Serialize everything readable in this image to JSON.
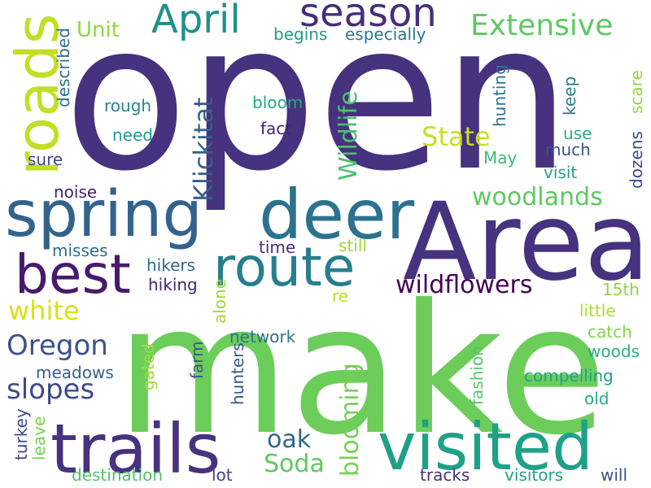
{
  "words": {
    "open": {
      "text": "open",
      "color": "#46327e"
    },
    "make": {
      "text": "make",
      "color": "#6ccd5a"
    },
    "area": {
      "text": "Area",
      "color": "#46327e"
    },
    "spring": {
      "text": "spring",
      "color": "#33638d"
    },
    "deer": {
      "text": "deer",
      "color": "#2c728e"
    },
    "trails": {
      "text": "trails",
      "color": "#46327e"
    },
    "visited": {
      "text": "visited",
      "color": "#1fa187"
    },
    "route": {
      "text": "route",
      "color": "#277f8e"
    },
    "best": {
      "text": "best",
      "color": "#481a6c"
    },
    "roads": {
      "text": "roads",
      "color": "#c2df23"
    },
    "season": {
      "text": "season",
      "color": "#472d7b"
    },
    "april": {
      "text": "April",
      "color": "#21918c"
    },
    "extensive": {
      "text": "Extensive",
      "color": "#5ec962"
    },
    "wildflowers": {
      "text": "wildflowers",
      "color": "#440154"
    },
    "woodlands": {
      "text": "woodlands",
      "color": "#5ec962"
    },
    "klickitat": {
      "text": "Klickitat",
      "color": "#355f8d"
    },
    "state": {
      "text": "State",
      "color": "#c8e020"
    },
    "wildlife": {
      "text": "Wildlife",
      "color": "#4ac16d"
    },
    "oregon": {
      "text": "Oregon",
      "color": "#3b528b"
    },
    "slopes": {
      "text": "slopes",
      "color": "#3e4a89"
    },
    "white": {
      "text": "white",
      "color": "#d8e219"
    },
    "blooming": {
      "text": "blooming",
      "color": "#75d054"
    },
    "soda": {
      "text": "Soda",
      "color": "#5ec962"
    },
    "oak": {
      "text": "oak",
      "color": "#31688e"
    },
    "unit": {
      "text": "Unit",
      "color": "#90d743"
    },
    "begins": {
      "text": "begins",
      "color": "#1f9e89"
    },
    "especially": {
      "text": "especially",
      "color": "#2a788e"
    },
    "described": {
      "text": "described",
      "color": "#2e6e8e"
    },
    "rough": {
      "text": "rough",
      "color": "#25848e"
    },
    "bloom": {
      "text": "bloom",
      "color": "#22a884"
    },
    "need": {
      "text": "need",
      "color": "#1e9b8a"
    },
    "fact": {
      "text": "fact",
      "color": "#482576"
    },
    "sure": {
      "text": "sure",
      "color": "#3e4989"
    },
    "noise": {
      "text": "noise",
      "color": "#481f70"
    },
    "misses": {
      "text": "misses",
      "color": "#2d708e"
    },
    "time": {
      "text": "time",
      "color": "#472f7d"
    },
    "still": {
      "text": "still",
      "color": "#9bd93c"
    },
    "hikers": {
      "text": "hikers",
      "color": "#31688e"
    },
    "hiking": {
      "text": "hiking",
      "color": "#482677"
    },
    "alone": {
      "text": "alone",
      "color": "#a0da39"
    },
    "re": {
      "text": "re",
      "color": "#bddf26"
    },
    "network": {
      "text": "network",
      "color": "#2c728e"
    },
    "farm": {
      "text": "farm",
      "color": "#38588c"
    },
    "hunters": {
      "text": "hunters",
      "color": "#3a548c"
    },
    "gated": {
      "text": "gated",
      "color": "#a5db36"
    },
    "meadows": {
      "text": "meadows",
      "color": "#355f8d"
    },
    "turkey": {
      "text": "turkey",
      "color": "#3f4788"
    },
    "leave": {
      "text": "leave",
      "color": "#7ad151"
    },
    "destination": {
      "text": "destination",
      "color": "#4ec36b"
    },
    "lot": {
      "text": "lot",
      "color": "#414487"
    },
    "tracks": {
      "text": "tracks",
      "color": "#46307e"
    },
    "visitors": {
      "text": "visitors",
      "color": "#20a386"
    },
    "will": {
      "text": "will",
      "color": "#3b528b"
    },
    "fashion": {
      "text": "fashion",
      "color": "#56c667"
    },
    "compelling": {
      "text": "compelling",
      "color": "#1fa287"
    },
    "old": {
      "text": "old",
      "color": "#26ad81"
    },
    "woods": {
      "text": "woods",
      "color": "#2ab07f"
    },
    "catch": {
      "text": "catch",
      "color": "#84d44b"
    },
    "little": {
      "text": "little",
      "color": "#addc30"
    },
    "fifteenth": {
      "text": "15th",
      "color": "#8ed645"
    },
    "hunting": {
      "text": "hunting",
      "color": "#2c728e"
    },
    "keep": {
      "text": "keep",
      "color": "#287c8e"
    },
    "use": {
      "text": "use",
      "color": "#29af7f"
    },
    "much": {
      "text": "much",
      "color": "#3b528b"
    },
    "may": {
      "text": "May",
      "color": "#3bbb75"
    },
    "visit": {
      "text": "visit",
      "color": "#20a386"
    },
    "scare": {
      "text": "scare",
      "color": "#93d741"
    },
    "dozens": {
      "text": "dozens",
      "color": "#3f4889"
    }
  }
}
